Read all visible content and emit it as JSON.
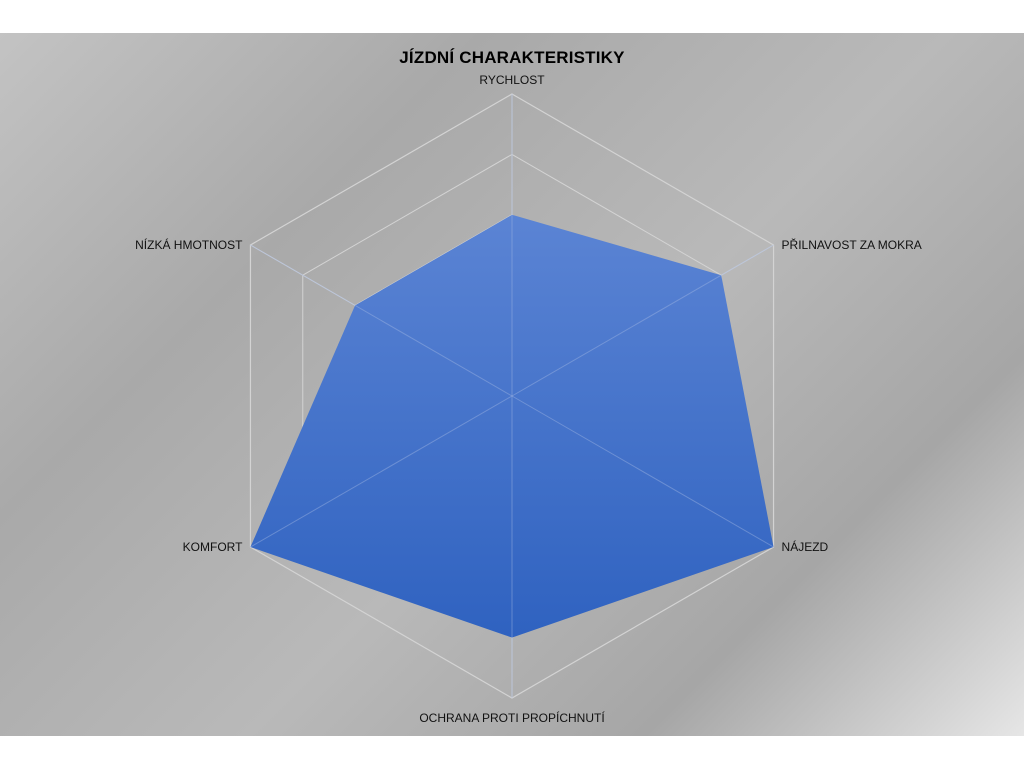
{
  "chart_data": {
    "type": "radar",
    "title": "JÍZDNÍ CHARAKTERISTIKY",
    "categories": [
      "RYCHLOST",
      "PŘILNAVOST ZA MOKRA",
      "NÁJEZD",
      "OCHRANA PROTI PROPÍCHNUTÍ",
      "KOMFORT",
      "NÍZKÁ HMOTNOST"
    ],
    "series": [
      {
        "values": [
          3,
          4,
          5,
          4,
          5,
          3
        ]
      }
    ],
    "rlim": [
      0,
      5
    ],
    "grid": true,
    "legend": "none",
    "colors": {
      "fill_top": "#5b84d4",
      "fill_bottom": "#2f62c0",
      "grid": "#d3d3d3",
      "background": "#b3b3b3"
    }
  }
}
